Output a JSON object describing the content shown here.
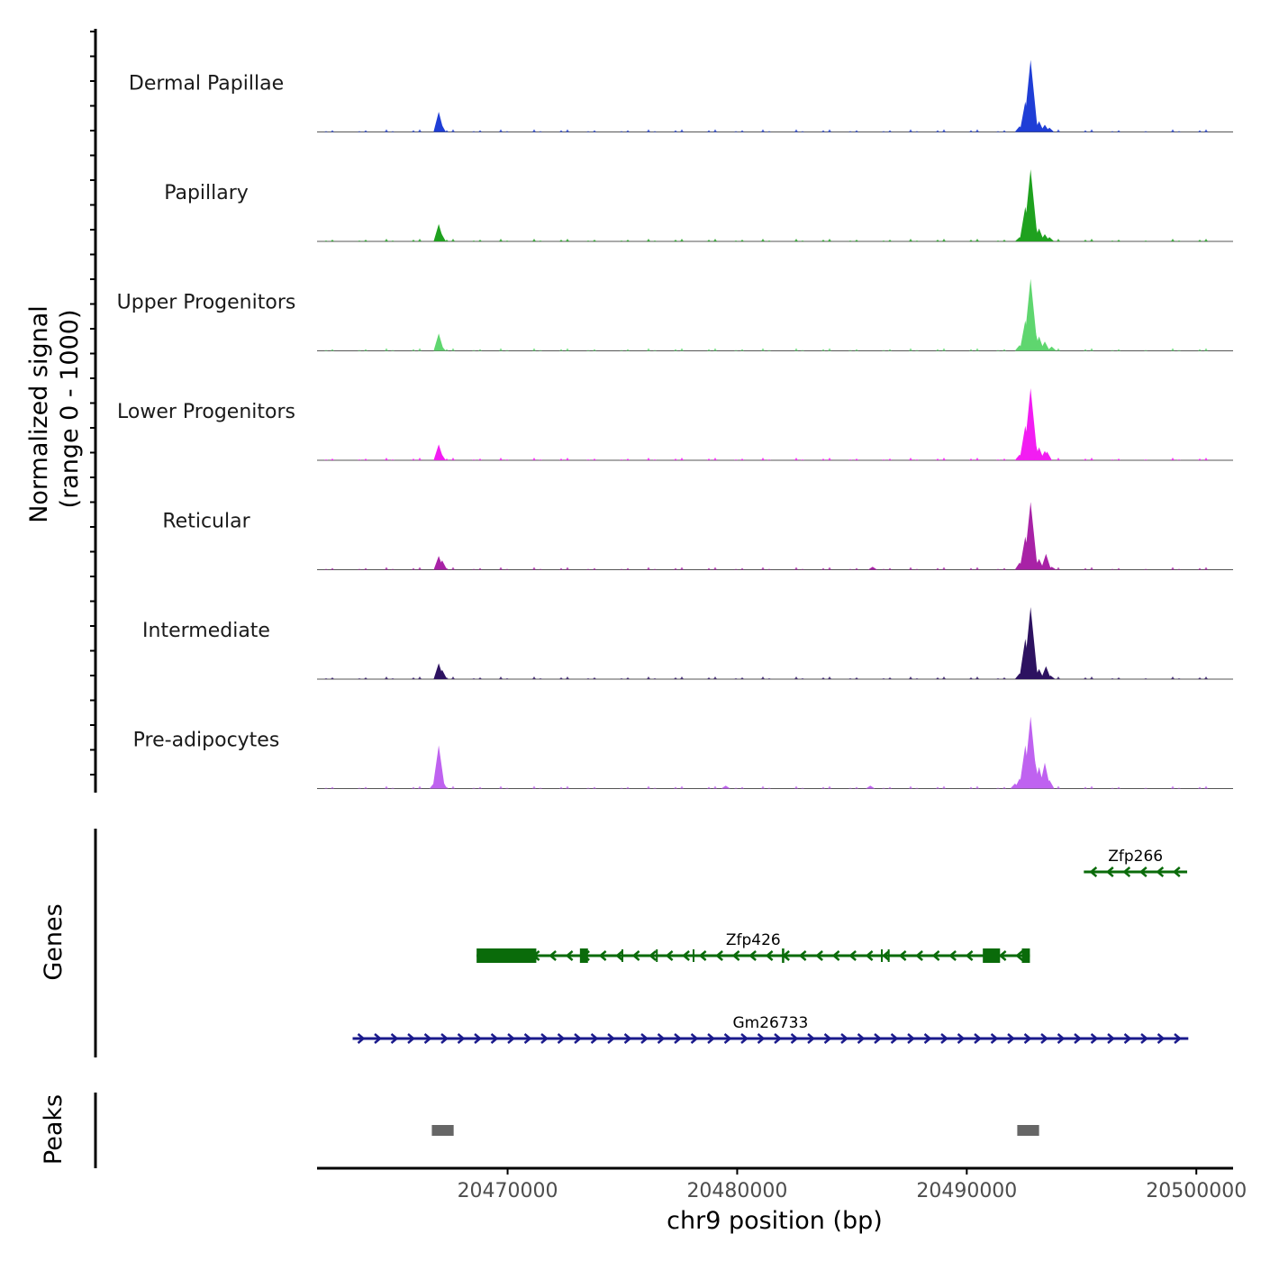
{
  "chart_data": {
    "type": "area",
    "title": "",
    "chromosome": "chr9",
    "xlabel": "chr9 position (bp)",
    "ylabel": "Normalized signal",
    "ylabel_range": "(range 0 - 1000)",
    "xlim": [
      20461700,
      20501600
    ],
    "ylim": [
      0,
      1000
    ],
    "x_ticks": [
      20470000,
      20480000,
      20490000,
      20500000
    ],
    "x_tick_labels": [
      "20470000",
      "20480000",
      "20490000",
      "20500000"
    ],
    "series": [
      {
        "name": "Dermal Papillae",
        "color": "#1f3ed6",
        "peaks": [
          [
            20467000,
            280
          ],
          [
            20467100,
            120
          ],
          [
            20492300,
            80
          ],
          [
            20492550,
            420
          ],
          [
            20492780,
            1000
          ],
          [
            20492950,
            230
          ],
          [
            20493150,
            150
          ],
          [
            20493400,
            100
          ],
          [
            20493600,
            60
          ]
        ]
      },
      {
        "name": "Papillary",
        "color": "#1fa11f",
        "peaks": [
          [
            20467000,
            240
          ],
          [
            20467100,
            120
          ],
          [
            20492300,
            60
          ],
          [
            20492550,
            480
          ],
          [
            20492780,
            1000
          ],
          [
            20492950,
            280
          ],
          [
            20493150,
            180
          ],
          [
            20493400,
            100
          ],
          [
            20493600,
            60
          ]
        ]
      },
      {
        "name": "Upper Progenitors",
        "color": "#5fd66f",
        "peaks": [
          [
            20467000,
            240
          ],
          [
            20467100,
            80
          ],
          [
            20492300,
            80
          ],
          [
            20492550,
            420
          ],
          [
            20492780,
            1000
          ],
          [
            20492950,
            330
          ],
          [
            20493150,
            200
          ],
          [
            20493400,
            130
          ],
          [
            20493700,
            60
          ]
        ]
      },
      {
        "name": "Lower Progenitors",
        "color": "#f21df2",
        "peaks": [
          [
            20467000,
            220
          ],
          [
            20467100,
            100
          ],
          [
            20492300,
            80
          ],
          [
            20492550,
            480
          ],
          [
            20492780,
            1000
          ],
          [
            20492950,
            300
          ],
          [
            20493150,
            180
          ],
          [
            20493400,
            130
          ],
          [
            20493500,
            120
          ]
        ]
      },
      {
        "name": "Reticular",
        "color": "#a822a6",
        "peaks": [
          [
            20467000,
            190
          ],
          [
            20467150,
            130
          ],
          [
            20485900,
            40
          ],
          [
            20492300,
            100
          ],
          [
            20492550,
            460
          ],
          [
            20492780,
            940
          ],
          [
            20492950,
            220
          ],
          [
            20493150,
            150
          ],
          [
            20493450,
            220
          ],
          [
            20493700,
            40
          ]
        ]
      },
      {
        "name": "Intermediate",
        "color": "#2d1260",
        "peaks": [
          [
            20467000,
            220
          ],
          [
            20467150,
            130
          ],
          [
            20492300,
            80
          ],
          [
            20492550,
            560
          ],
          [
            20492780,
            1000
          ],
          [
            20492950,
            220
          ],
          [
            20493150,
            140
          ],
          [
            20493450,
            180
          ],
          [
            20493650,
            50
          ]
        ]
      },
      {
        "name": "Pre-adipocytes",
        "color": "#bf62f0",
        "peaks": [
          [
            20466800,
            80
          ],
          [
            20467000,
            600
          ],
          [
            20467150,
            120
          ],
          [
            20479500,
            40
          ],
          [
            20485800,
            40
          ],
          [
            20492100,
            70
          ],
          [
            20492300,
            140
          ],
          [
            20492550,
            600
          ],
          [
            20492780,
            1000
          ],
          [
            20492950,
            420
          ],
          [
            20493150,
            300
          ],
          [
            20493400,
            360
          ],
          [
            20493600,
            120
          ]
        ]
      }
    ],
    "genes": [
      {
        "name": "Zfp266",
        "strand": "-",
        "start": 20495100,
        "end": 20499600,
        "exons": []
      },
      {
        "name": "Zfp426",
        "strand": "-",
        "start": 20468650,
        "end": 20492750,
        "exons": [
          [
            20468650,
            20471250
          ],
          [
            20473150,
            20473500
          ],
          [
            20481950,
            20482050
          ],
          [
            20490700,
            20491450
          ],
          [
            20492400,
            20492750
          ]
        ]
      },
      {
        "name": "Gm26733",
        "strand": "+",
        "start": 20463250,
        "end": 20499650,
        "exons": []
      }
    ],
    "peaks_track": [
      [
        20466700,
        20467650
      ],
      [
        20492200,
        20493150
      ]
    ],
    "panel_labels": [
      "Genes",
      "Peaks"
    ]
  }
}
